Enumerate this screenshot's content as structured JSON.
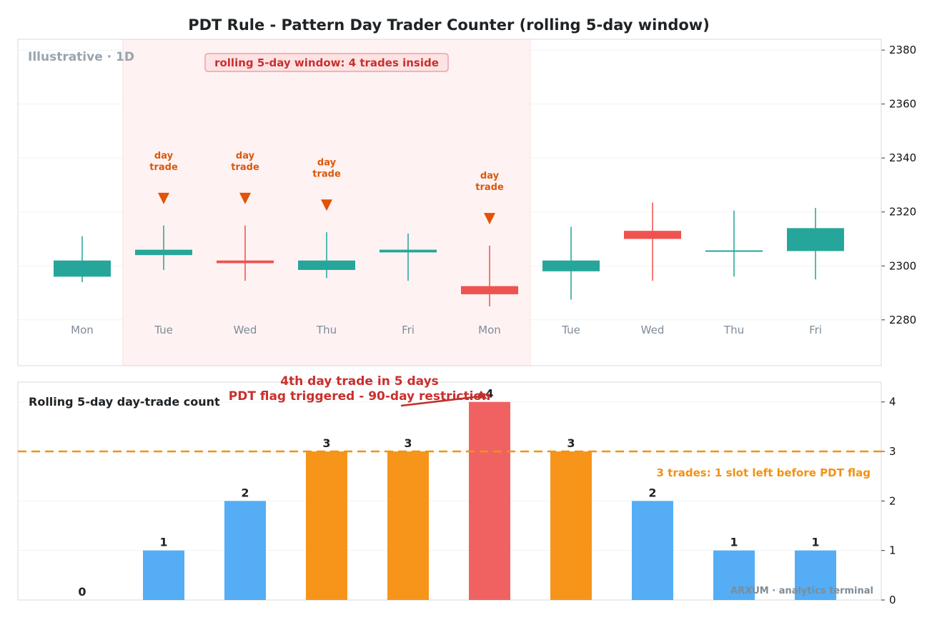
{
  "colors": {
    "up": "#26a69a",
    "down": "#ef5350",
    "safe": "#54adf5",
    "warning": "#f7951b",
    "flagged": "#f06261",
    "threshold": "#f29111",
    "window_fill": "#fff2f2",
    "annotation": "#c9302c",
    "marker": "#e25207"
  },
  "chart_data": [
    {
      "type": "candlestick",
      "title": "PDT Rule - Pattern Day Trader Counter (rolling 5-day window)",
      "watermark": "Illustrative · 1D",
      "categories": [
        "Mon",
        "Tue",
        "Wed",
        "Thu",
        "Fri",
        "Mon",
        "Tue",
        "Wed",
        "Thu",
        "Fri"
      ],
      "ohlc": [
        {
          "open": 296,
          "high": 311,
          "low": 294,
          "close": 302
        },
        {
          "open": 304,
          "high": 315,
          "low": 298.5,
          "close": 306
        },
        {
          "open": 302,
          "high": 315,
          "low": 294.5,
          "close": 301
        },
        {
          "open": 298.5,
          "high": 312.5,
          "low": 295.5,
          "close": 302
        },
        {
          "open": 305,
          "high": 312,
          "low": 294.5,
          "close": 306
        },
        {
          "open": 292.5,
          "high": 307.5,
          "low": 285,
          "close": 289.5
        },
        {
          "open": 298,
          "high": 314.5,
          "low": 287.5,
          "close": 302
        },
        {
          "open": 313,
          "high": 323.5,
          "low": 294.5,
          "close": 310
        },
        {
          "open": 305.5,
          "high": 320.5,
          "low": 296,
          "close": 305.5
        },
        {
          "open": 305.5,
          "high": 321.5,
          "low": 295,
          "close": 314
        }
      ],
      "ylim": [
        2263,
        2384
      ],
      "y_offset": 2000,
      "yticks": [
        2280,
        2300,
        2320,
        2340,
        2360,
        2380
      ],
      "y_axis_position": "right",
      "grid": true,
      "window": {
        "start_index": 1,
        "end_index": 5,
        "label": "rolling 5-day window: 4 trades inside"
      },
      "day_trade_marks": [
        {
          "index": 1,
          "label_lines": [
            "day",
            "trade"
          ],
          "marker_price": 2325
        },
        {
          "index": 2,
          "label_lines": [
            "day",
            "trade"
          ],
          "marker_price": 2325
        },
        {
          "index": 3,
          "label_lines": [
            "day",
            "trade"
          ],
          "marker_price": 2322.5
        },
        {
          "index": 5,
          "label_lines": [
            "day",
            "trade"
          ],
          "marker_price": 2317.5
        }
      ]
    },
    {
      "type": "bar",
      "title": "Rolling 5-day day-trade count",
      "categories": [
        "Mon",
        "Tue",
        "Wed",
        "Thu",
        "Fri",
        "Mon",
        "Tue",
        "Wed",
        "Thu",
        "Fri"
      ],
      "values": [
        0,
        1,
        2,
        3,
        3,
        4,
        3,
        2,
        1,
        1
      ],
      "ylim": [
        0,
        4.4
      ],
      "yticks": [
        0,
        1,
        2,
        3,
        4
      ],
      "y_axis_position": "right",
      "grid": true,
      "threshold": {
        "value": 3,
        "label": "3 trades: 1 slot left before PDT flag"
      },
      "annotation": {
        "index": 5,
        "value": 4,
        "lines": [
          "4th day trade in 5 days",
          "PDT flag triggered - 90-day restriction"
        ]
      }
    }
  ],
  "footer": "ARXUM · analytics terminal"
}
